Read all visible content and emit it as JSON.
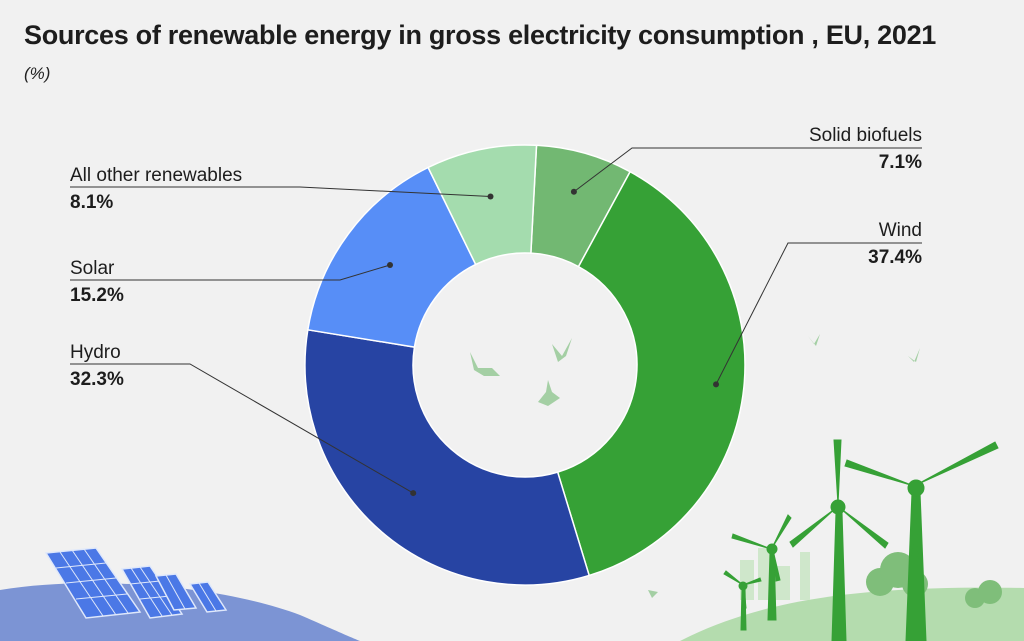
{
  "title": "Sources of renewable energy in gross electricity consumption , EU, 2021",
  "unit": "(%)",
  "chart_data": {
    "type": "pie",
    "donut": true,
    "categories": [
      "Wind",
      "Hydro",
      "Solar",
      "All other renewables",
      "Solid biofuels"
    ],
    "values": [
      37.4,
      32.3,
      15.2,
      8.1,
      7.1
    ],
    "value_labels": [
      "37.4%",
      "32.3%",
      "15.2%",
      "8.1%",
      "7.1%"
    ],
    "colors": [
      "#36a136",
      "#2744a3",
      "#578ef7",
      "#a4dcae",
      "#72b872"
    ],
    "start": "top, clockwise from Solid biofuels",
    "legend": "none (direct labels with leader lines)"
  },
  "illustration": {
    "icons": [
      "solar-panel-icon",
      "wind-turbine-icon",
      "bird-icon",
      "tree-icon"
    ],
    "colors": {
      "hill_blue": "#7c94d4",
      "hill_green": "#b4dcae",
      "turbine": "#36a136",
      "panel": "#4b78e6"
    }
  }
}
